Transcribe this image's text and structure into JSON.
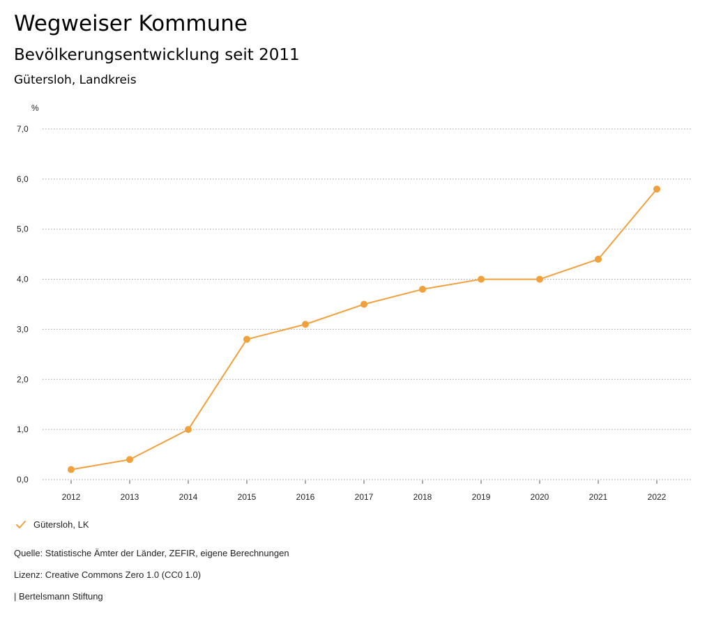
{
  "header": {
    "title": "Wegweiser Kommune",
    "subtitle": "Bevölkerungsentwicklung seit 2011",
    "region": "Gütersloh, Landkreis"
  },
  "chart_data": {
    "type": "line",
    "title": "Bevölkerungsentwicklung seit 2011",
    "ylabel": "%",
    "xlabel": "",
    "ylim": [
      0,
      7
    ],
    "yticks": [
      0,
      1,
      2,
      3,
      4,
      5,
      6,
      7
    ],
    "ytick_labels": [
      "0,0",
      "1,0",
      "2,0",
      "3,0",
      "4,0",
      "5,0",
      "6,0",
      "7,0"
    ],
    "categories": [
      "2012",
      "2013",
      "2014",
      "2015",
      "2016",
      "2017",
      "2018",
      "2019",
      "2020",
      "2021",
      "2022"
    ],
    "series": [
      {
        "name": "Gütersloh, LK",
        "color": "#F0A03C",
        "values": [
          0.2,
          0.4,
          1.0,
          2.8,
          3.1,
          3.5,
          3.8,
          4.0,
          4.0,
          4.4,
          5.8
        ]
      }
    ],
    "grid": true,
    "legend_position": "bottom-left"
  },
  "legend": {
    "label": "Gütersloh, LK"
  },
  "footer": {
    "source": "Quelle: Statistische Ämter der Länder, ZEFIR, eigene Berechnungen",
    "license": "Lizenz: Creative Commons Zero 1.0 (CC0 1.0)",
    "publisher": "| Bertelsmann Stiftung"
  }
}
